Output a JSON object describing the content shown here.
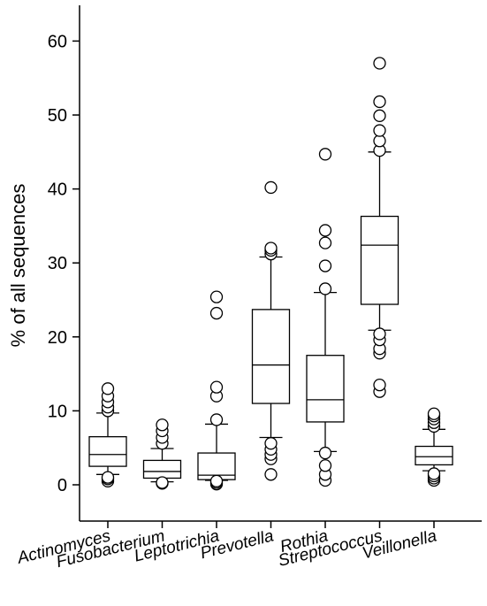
{
  "chart_data": {
    "type": "box",
    "title": "",
    "xlabel": "",
    "ylabel": "% of all sequences",
    "ylim": [
      -5,
      65
    ],
    "yticks": [
      0,
      10,
      20,
      30,
      40,
      50,
      60
    ],
    "ytick_labels": [
      "0",
      "10",
      "20",
      "30",
      "40",
      "50",
      "60"
    ],
    "categories": [
      "Actinomyces",
      "Fusobacterium",
      "Leptotrichia",
      "Prevotella",
      "Rothia",
      "Streptococcus",
      "Veillonella"
    ],
    "boxes": [
      {
        "q1": 2.5,
        "median": 4.1,
        "q3": 6.5,
        "whisker_low": 1.4,
        "whisker_high": 9.7,
        "outliers": [
          0.5,
          0.8,
          1.0,
          10.0,
          10.5,
          11.2,
          12.0,
          13.0
        ]
      },
      {
        "q1": 0.9,
        "median": 1.8,
        "q3": 3.3,
        "whisker_low": 0.4,
        "whisker_high": 4.9,
        "outliers": [
          0.2,
          0.3,
          5.6,
          6.4,
          7.3,
          8.1
        ]
      },
      {
        "q1": 0.7,
        "median": 1.3,
        "q3": 4.3,
        "whisker_low": 0.6,
        "whisker_high": 8.2,
        "outliers": [
          0.1,
          0.3,
          0.5,
          8.8,
          12.0,
          13.2,
          23.2,
          25.4
        ]
      },
      {
        "q1": 11.0,
        "median": 16.2,
        "q3": 23.7,
        "whisker_low": 6.4,
        "whisker_high": 30.8,
        "outliers": [
          1.4,
          3.5,
          4.1,
          4.8,
          5.6,
          31.2,
          31.7,
          32.0,
          40.2
        ]
      },
      {
        "q1": 8.5,
        "median": 11.5,
        "q3": 17.5,
        "whisker_low": 4.5,
        "whisker_high": 26.0,
        "outliers": [
          0.6,
          1.4,
          2.6,
          4.3,
          26.5,
          29.6,
          32.7,
          34.4,
          44.7
        ]
      },
      {
        "q1": 24.4,
        "median": 32.4,
        "q3": 36.3,
        "whisker_low": 20.9,
        "whisker_high": 45.0,
        "outliers": [
          12.6,
          13.5,
          17.8,
          18.4,
          19.6,
          20.4,
          45.2,
          46.5,
          47.9,
          49.9,
          51.8,
          57.0
        ]
      },
      {
        "q1": 2.7,
        "median": 3.8,
        "q3": 5.2,
        "whisker_low": 1.9,
        "whisker_high": 7.5,
        "outliers": [
          0.6,
          0.9,
          1.2,
          1.5,
          7.9,
          8.4,
          8.9,
          9.3,
          9.6
        ]
      }
    ]
  }
}
